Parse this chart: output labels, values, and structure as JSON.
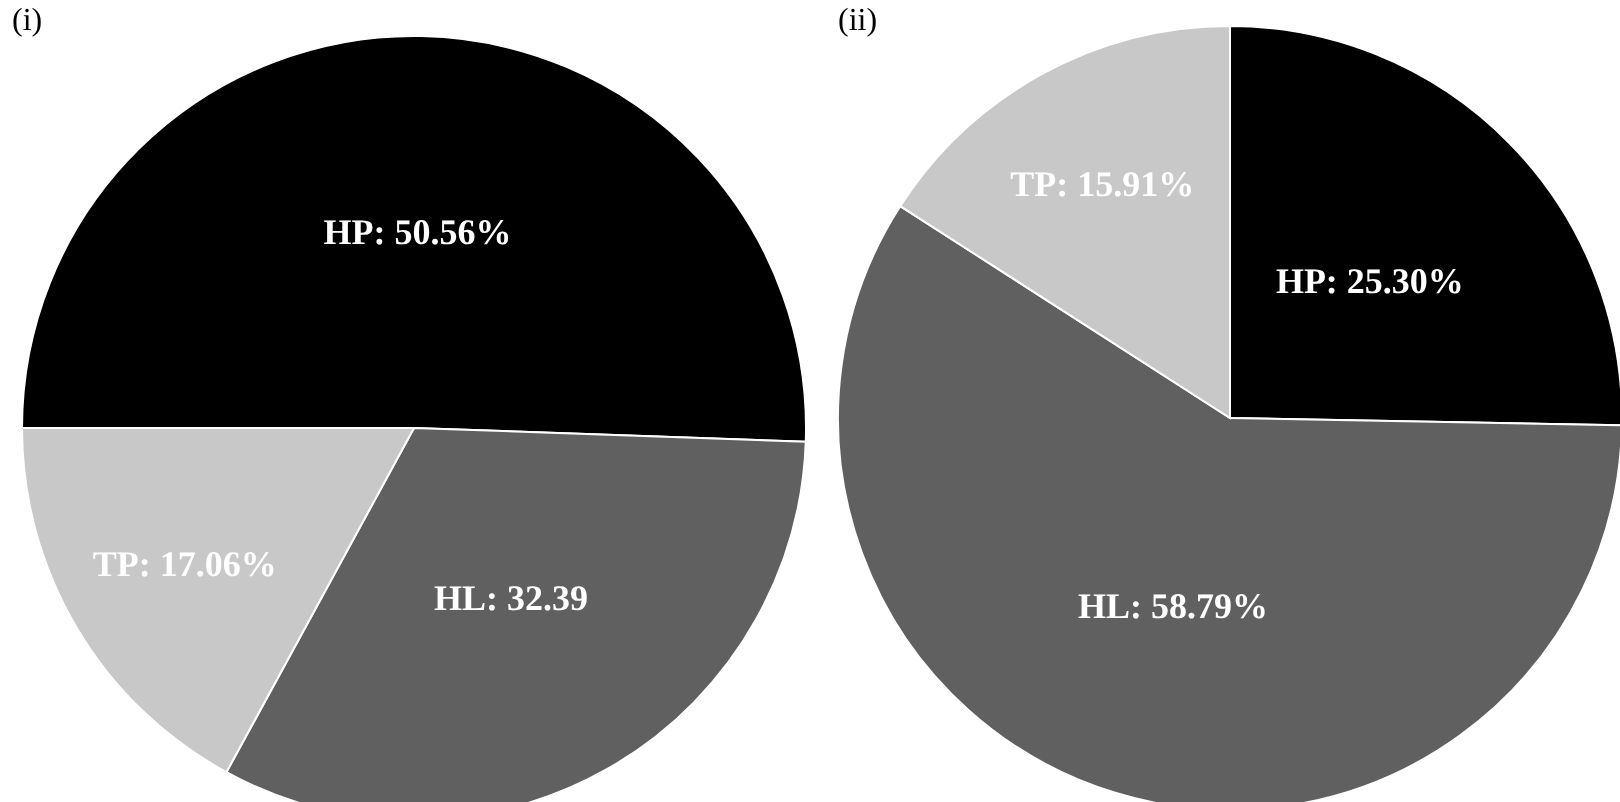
{
  "chart_data": [
    {
      "type": "pie",
      "title": "(i)",
      "categories": [
        "HP",
        "HL",
        "TP"
      ],
      "values": [
        50.56,
        32.39,
        17.06
      ],
      "colors": [
        "#000000",
        "#606060",
        "#c8c8c8"
      ],
      "value_labels": [
        "50.56%",
        "32.39",
        "17.06%"
      ]
    },
    {
      "type": "pie",
      "title": "(ii)",
      "categories": [
        "HP",
        "HL",
        "TP"
      ],
      "values": [
        25.3,
        58.79,
        15.91
      ],
      "colors": [
        "#000000",
        "#606060",
        "#c8c8c8"
      ],
      "value_labels": [
        "25.30%",
        "58.79%",
        "15.91%"
      ]
    }
  ]
}
